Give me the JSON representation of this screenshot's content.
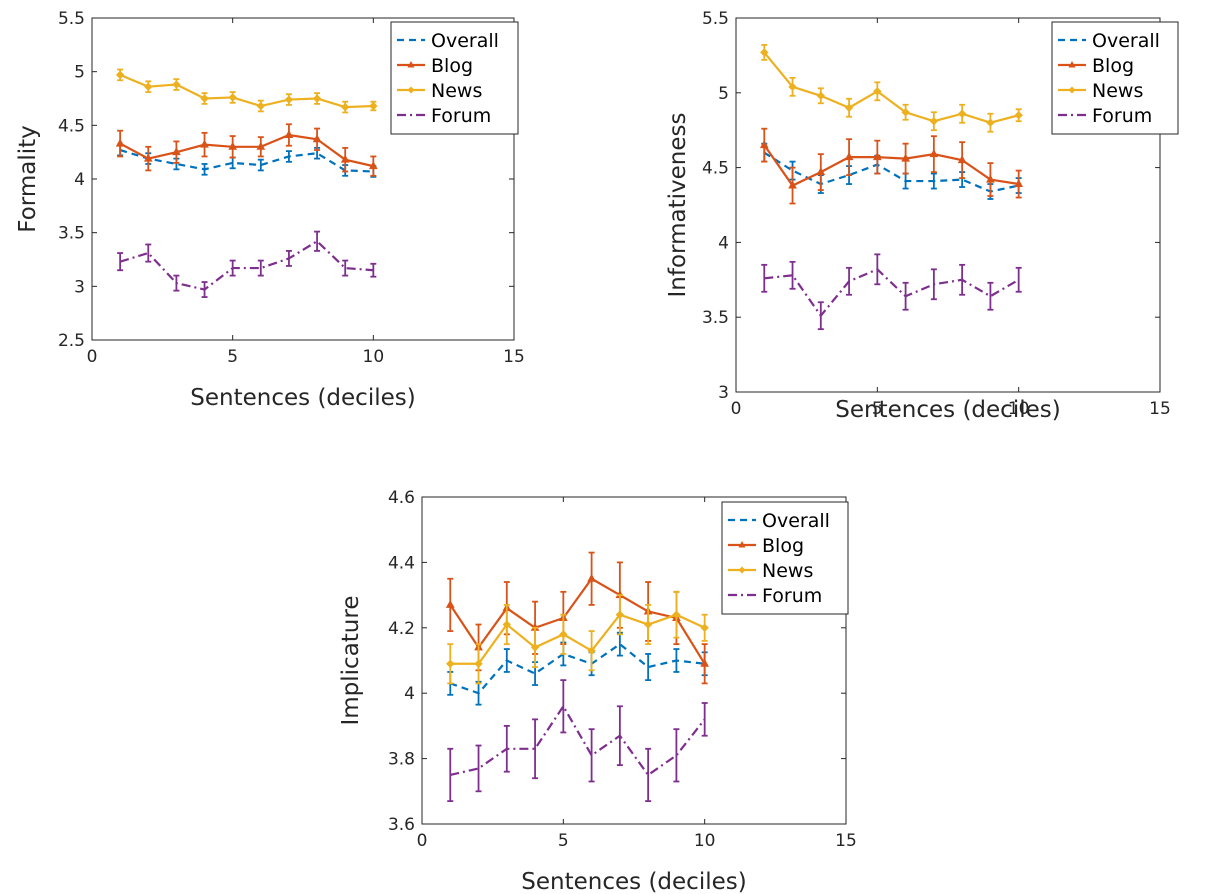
{
  "chart_data": [
    {
      "type": "line",
      "xlabel": "Sentences (deciles)",
      "ylabel": "Formality",
      "xlim": [
        0,
        15
      ],
      "ylim": [
        2.5,
        5.5
      ],
      "xticks": [
        "0",
        "5",
        "10",
        "15"
      ],
      "yticks": [
        "2.5",
        "3",
        "3.5",
        "4",
        "4.5",
        "5",
        "5.5"
      ],
      "legend_position": "top-right",
      "grid": false,
      "x": [
        1,
        2,
        3,
        4,
        5,
        6,
        7,
        8,
        9,
        10
      ],
      "series": [
        {
          "name": "Overall",
          "color": "#0072BD",
          "style": "dashed",
          "marker": "none",
          "values": [
            4.27,
            4.19,
            4.14,
            4.09,
            4.15,
            4.13,
            4.21,
            4.24,
            4.08,
            4.07
          ],
          "errors": [
            0.05,
            0.05,
            0.05,
            0.05,
            0.05,
            0.05,
            0.05,
            0.05,
            0.05,
            0.05
          ]
        },
        {
          "name": "Blog",
          "color": "#D95319",
          "style": "solid",
          "marker": "triangle",
          "values": [
            4.33,
            4.19,
            4.25,
            4.32,
            4.3,
            4.3,
            4.41,
            4.37,
            4.18,
            4.12
          ],
          "errors": [
            0.12,
            0.11,
            0.1,
            0.11,
            0.1,
            0.09,
            0.1,
            0.1,
            0.11,
            0.09
          ]
        },
        {
          "name": "News",
          "color": "#EDB120",
          "style": "solid",
          "marker": "diamond",
          "values": [
            4.97,
            4.86,
            4.88,
            4.75,
            4.76,
            4.68,
            4.74,
            4.75,
            4.67,
            4.68
          ],
          "errors": [
            0.05,
            0.05,
            0.05,
            0.05,
            0.05,
            0.05,
            0.05,
            0.05,
            0.05,
            0.04
          ]
        },
        {
          "name": "Forum",
          "color": "#7E2F8E",
          "style": "dashdot",
          "marker": "none",
          "values": [
            3.23,
            3.31,
            3.03,
            2.97,
            3.17,
            3.17,
            3.26,
            3.42,
            3.17,
            3.15
          ],
          "errors": [
            0.08,
            0.08,
            0.07,
            0.07,
            0.07,
            0.07,
            0.07,
            0.09,
            0.07,
            0.06
          ]
        }
      ]
    },
    {
      "type": "line",
      "xlabel": "Sentences (deciles)",
      "ylabel": "Informativeness",
      "xlim": [
        0,
        15
      ],
      "ylim": [
        3,
        5.5
      ],
      "xticks": [
        "0",
        "5",
        "10",
        "15"
      ],
      "yticks": [
        "3",
        "3.5",
        "4",
        "4.5",
        "5",
        "5.5"
      ],
      "legend_position": "top-right",
      "grid": false,
      "x": [
        1,
        2,
        3,
        4,
        5,
        6,
        7,
        8,
        9,
        10
      ],
      "series": [
        {
          "name": "Overall",
          "color": "#0072BD",
          "style": "dashed",
          "marker": "none",
          "values": [
            4.6,
            4.48,
            4.39,
            4.45,
            4.52,
            4.41,
            4.41,
            4.42,
            4.34,
            4.38
          ],
          "errors": [
            0.06,
            0.06,
            0.06,
            0.06,
            0.06,
            0.05,
            0.05,
            0.05,
            0.05,
            0.05
          ]
        },
        {
          "name": "Blog",
          "color": "#D95319",
          "style": "solid",
          "marker": "triangle",
          "values": [
            4.65,
            4.38,
            4.47,
            4.57,
            4.57,
            4.56,
            4.59,
            4.55,
            4.42,
            4.39
          ],
          "errors": [
            0.11,
            0.12,
            0.12,
            0.12,
            0.11,
            0.1,
            0.12,
            0.12,
            0.11,
            0.09
          ]
        },
        {
          "name": "News",
          "color": "#EDB120",
          "style": "solid",
          "marker": "diamond",
          "values": [
            5.27,
            5.04,
            4.98,
            4.9,
            5.01,
            4.87,
            4.81,
            4.86,
            4.8,
            4.85
          ],
          "errors": [
            0.05,
            0.06,
            0.05,
            0.06,
            0.06,
            0.05,
            0.06,
            0.06,
            0.06,
            0.04
          ]
        },
        {
          "name": "Forum",
          "color": "#7E2F8E",
          "style": "dashdot",
          "marker": "none",
          "values": [
            3.76,
            3.78,
            3.51,
            3.74,
            3.82,
            3.64,
            3.72,
            3.75,
            3.64,
            3.75
          ],
          "errors": [
            0.09,
            0.09,
            0.09,
            0.09,
            0.1,
            0.09,
            0.1,
            0.1,
            0.09,
            0.08
          ]
        }
      ]
    },
    {
      "type": "line",
      "xlabel": "Sentences (deciles)",
      "ylabel": "Implicature",
      "xlim": [
        0,
        15
      ],
      "ylim": [
        3.6,
        4.6
      ],
      "xticks": [
        "0",
        "5",
        "10",
        "15"
      ],
      "yticks": [
        "3.6",
        "3.8",
        "4",
        "4.2",
        "4.4",
        "4.6"
      ],
      "legend_position": "top-right",
      "grid": false,
      "x": [
        1,
        2,
        3,
        4,
        5,
        6,
        7,
        8,
        9,
        10
      ],
      "series": [
        {
          "name": "Overall",
          "color": "#0072BD",
          "style": "dashed",
          "marker": "none",
          "values": [
            4.03,
            4.0,
            4.1,
            4.06,
            4.12,
            4.09,
            4.15,
            4.08,
            4.1,
            4.09
          ],
          "errors": [
            0.035,
            0.035,
            0.035,
            0.035,
            0.035,
            0.035,
            0.035,
            0.04,
            0.035,
            0.035
          ]
        },
        {
          "name": "Blog",
          "color": "#D95319",
          "style": "solid",
          "marker": "triangle",
          "values": [
            4.27,
            4.14,
            4.26,
            4.2,
            4.23,
            4.35,
            4.3,
            4.25,
            4.23,
            4.09
          ],
          "errors": [
            0.08,
            0.07,
            0.08,
            0.08,
            0.08,
            0.08,
            0.1,
            0.09,
            0.08,
            0.06
          ]
        },
        {
          "name": "News",
          "color": "#EDB120",
          "style": "solid",
          "marker": "diamond",
          "values": [
            4.09,
            4.09,
            4.21,
            4.14,
            4.18,
            4.13,
            4.24,
            4.21,
            4.24,
            4.2
          ],
          "errors": [
            0.06,
            0.06,
            0.06,
            0.06,
            0.06,
            0.06,
            0.06,
            0.06,
            0.07,
            0.04
          ]
        },
        {
          "name": "Forum",
          "color": "#7E2F8E",
          "style": "dashdot",
          "marker": "none",
          "values": [
            3.75,
            3.77,
            3.83,
            3.83,
            3.96,
            3.81,
            3.87,
            3.75,
            3.81,
            3.92
          ],
          "errors": [
            0.08,
            0.07,
            0.07,
            0.09,
            0.08,
            0.08,
            0.09,
            0.08,
            0.08,
            0.05
          ]
        }
      ]
    }
  ]
}
